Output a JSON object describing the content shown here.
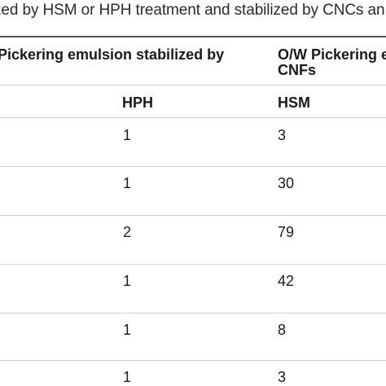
{
  "caption": "zed by HSM or HPH treatment and stabilized by CNCs an",
  "header": {
    "group1": "Pickering emulsion stabilized by",
    "group2_line1": "O/W Pickering e",
    "group2_line2": "CNFs",
    "sub_col1": "HPH",
    "sub_col2": "HSM"
  },
  "rows": [
    {
      "hph": "1",
      "hsm": "3"
    },
    {
      "hph": "1",
      "hsm": "30"
    },
    {
      "hph": "2",
      "hsm": "79"
    },
    {
      "hph": "1",
      "hsm": "42"
    },
    {
      "hph": "1",
      "hsm": "8"
    },
    {
      "hph": "1",
      "hsm": "3"
    }
  ]
}
